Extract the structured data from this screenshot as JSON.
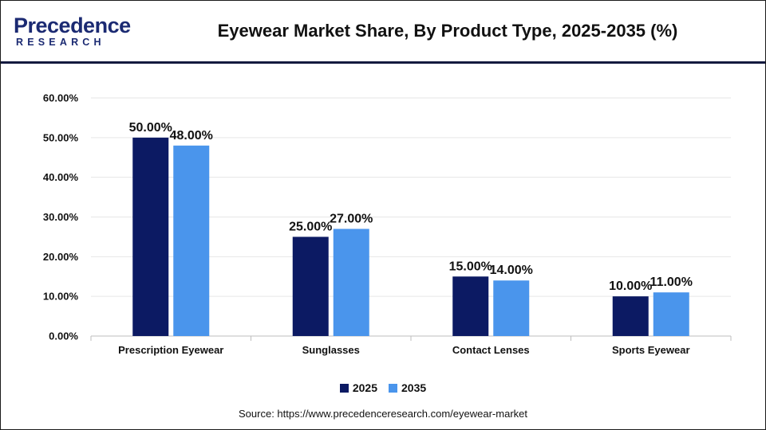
{
  "header": {
    "logo_text": "Precedence",
    "logo_subtext": "RESEARCH",
    "title": "Eyewear Market Share, By Product Type, 2025-2035 (%)"
  },
  "colors": {
    "series_2025": "#0c1a63",
    "series_2035": "#4a95ec",
    "brand": "#1b2a72"
  },
  "chart_data": {
    "type": "bar",
    "title": "Eyewear Market Share, By Product Type, 2025-2035 (%)",
    "xlabel": "",
    "ylabel": "",
    "categories": [
      "Prescription Eyewear",
      "Sunglasses",
      "Contact Lenses",
      "Sports Eyewear"
    ],
    "series": [
      {
        "name": "2025",
        "values": [
          50,
          25,
          15,
          10
        ],
        "labels": [
          "50.00%",
          "25.00%",
          "15.00%",
          "10.00%"
        ]
      },
      {
        "name": "2035",
        "values": [
          48,
          27,
          14,
          11
        ],
        "labels": [
          "48.00%",
          "27.00%",
          "14.00%",
          "11.00%"
        ]
      }
    ],
    "ylim": [
      0,
      60
    ],
    "yticks": [
      0,
      10,
      20,
      30,
      40,
      50,
      60
    ],
    "ytick_labels": [
      "0.00%",
      "10.00%",
      "20.00%",
      "30.00%",
      "40.00%",
      "50.00%",
      "60.00%"
    ],
    "grid": true,
    "legend_position": "bottom"
  },
  "legend": {
    "items": [
      {
        "label": "2025",
        "color": "#0c1a63"
      },
      {
        "label": "2035",
        "color": "#4a95ec"
      }
    ]
  },
  "footer": {
    "source": "Source: https://www.precedenceresearch.com/eyewear-market"
  }
}
